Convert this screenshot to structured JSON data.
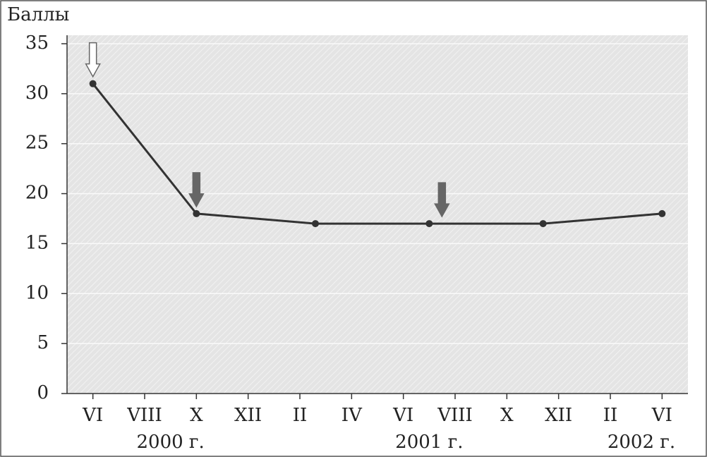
{
  "chart_data": {
    "type": "line",
    "y_label": "Баллы",
    "x": [
      0,
      2,
      4.3,
      6.5,
      8.7,
      11
    ],
    "series": [
      {
        "color": "#333333",
        "values": [
          31,
          18,
          17,
          17,
          17,
          18
        ]
      }
    ],
    "xlim": [
      -0.5,
      11.5
    ],
    "xticks": [
      {
        "value": 0,
        "label": "VI"
      },
      {
        "value": 1,
        "label": "VIII"
      },
      {
        "value": 2,
        "label": "X"
      },
      {
        "value": 3,
        "label": "XII"
      },
      {
        "value": 4,
        "label": "II"
      },
      {
        "value": 5,
        "label": "IV"
      },
      {
        "value": 6,
        "label": "VI"
      },
      {
        "value": 7,
        "label": "VIII"
      },
      {
        "value": 8,
        "label": "X"
      },
      {
        "value": 9,
        "label": "XII"
      },
      {
        "value": 10,
        "label": "II"
      },
      {
        "value": 11,
        "label": "VI"
      }
    ],
    "ylim": [
      0,
      35
    ],
    "yticks": [
      0,
      5,
      10,
      15,
      20,
      25,
      30,
      35
    ],
    "grid": true,
    "year_labels": [
      {
        "value": 1.5,
        "label": "2000 г."
      },
      {
        "value": 6.5,
        "label": "2001 г."
      },
      {
        "value": 10.6,
        "label": "2002 г."
      }
    ]
  }
}
